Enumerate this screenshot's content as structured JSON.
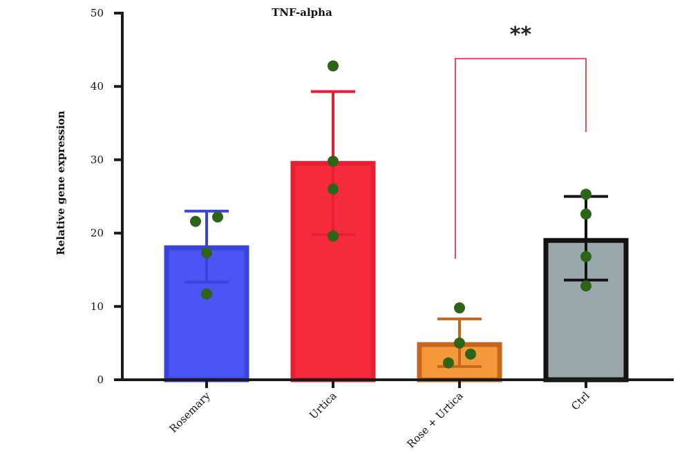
{
  "chart_data": {
    "type": "bar",
    "title": "TNF-alpha",
    "xlabel": "",
    "ylabel": "Relative gene expression",
    "ylim": [
      0,
      50
    ],
    "yticks": [
      "0",
      "10",
      "20",
      "30",
      "40",
      "50"
    ],
    "grid": false,
    "categories": [
      "Rosemary",
      "Urtica",
      "Rose + Urtica",
      "Ctrl"
    ],
    "values": [
      18,
      29.5,
      4.8,
      19
    ],
    "error_lower": [
      13.3,
      19.8,
      1.8,
      13.6
    ],
    "error_upper": [
      23,
      39.3,
      8.3,
      25
    ],
    "points": [
      [
        21.6,
        22.2,
        17.3,
        11.7
      ],
      [
        42.8,
        29.8,
        26.0,
        19.6
      ],
      [
        9.8,
        5.0,
        3.5,
        2.3
      ],
      [
        25.3,
        22.6,
        16.8,
        12.8
      ]
    ],
    "colors": {
      "fills": [
        "#4b55f6",
        "#f52a3c",
        "#f49a3a",
        "#9aa7ab"
      ],
      "edges": [
        "#3a43d8",
        "#e81e32",
        "#c8651c",
        "#121212"
      ],
      "points": "#2e6417",
      "significance": "#e84a5f"
    },
    "significance": {
      "label": "**",
      "from": "Rose + Urtica",
      "to": "Ctrl",
      "y": 43.8,
      "left_end": 16.5,
      "right_end": 33.8
    }
  }
}
